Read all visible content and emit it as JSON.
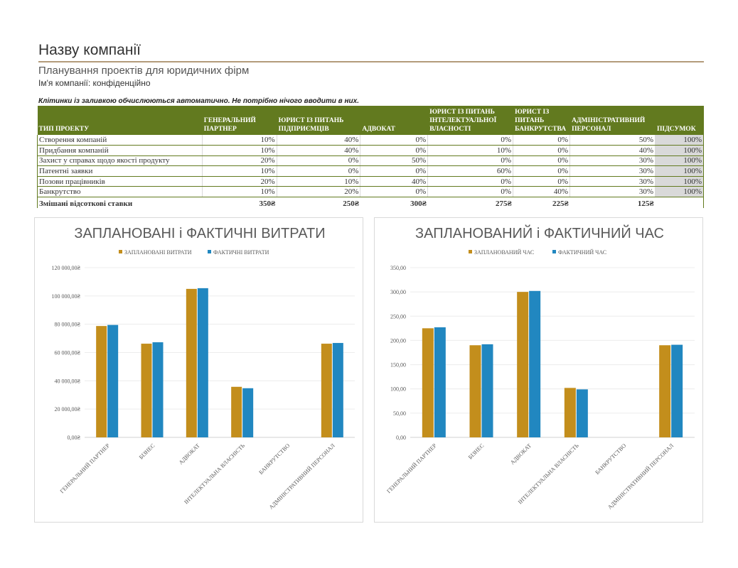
{
  "header": {
    "company_title": "Назву компанії",
    "subtitle": "Планування проектів для юридичних фірм",
    "company_name": "Ім'я компанії: конфіденційно"
  },
  "note": "Клітинки із заливкою обчислюються автоматично. Не потрібно нічого вводити в них.",
  "table": {
    "headers": [
      "ТИП ПРОЕКТУ",
      "ГЕНЕРАЛЬНИЙ ПАРТНЕР",
      "ЮРИСТ ІЗ ПИТАНЬ ПІДПРИЄМЦІВ",
      "АДВОКАТ",
      "ЮРИСТ ІЗ ПИТАНЬ ІНТЕЛЕКТУАЛЬНОЇ ВЛАСНОСТІ",
      "ЮРИСТ ІЗ ПИТАНЬ БАНКРУТСТВА",
      "АДМІНІСТРАТИВНИЙ ПЕРСОНАЛ",
      "ПІДСУМОК"
    ],
    "rows": [
      [
        "Створення компаній",
        "10%",
        "40%",
        "0%",
        "0%",
        "0%",
        "50%",
        "100%"
      ],
      [
        "Придбання компаній",
        "10%",
        "40%",
        "0%",
        "10%",
        "0%",
        "40%",
        "100%"
      ],
      [
        "Захист у справах щодо якості продукту",
        "20%",
        "0%",
        "50%",
        "0%",
        "0%",
        "30%",
        "100%"
      ],
      [
        "Патентні заявки",
        "10%",
        "0%",
        "0%",
        "60%",
        "0%",
        "30%",
        "100%"
      ],
      [
        "Позови працівників",
        "20%",
        "10%",
        "40%",
        "0%",
        "0%",
        "30%",
        "100%"
      ],
      [
        "Банкрутство",
        "10%",
        "20%",
        "0%",
        "0%",
        "40%",
        "30%",
        "100%"
      ]
    ],
    "mixed_rates": [
      "Змішані відсоткові ставки",
      "350₴",
      "250₴",
      "300₴",
      "275₴",
      "225₴",
      "125₴",
      ""
    ]
  },
  "chart_data": [
    {
      "type": "bar",
      "title": "ЗАПЛАНОВАНІ і ФАКТИЧНІ ВИТРАТИ",
      "categories": [
        "ГЕНЕРАЛЬНИЙ ПАРТНЕР",
        "БІЗНЕС",
        "АДВОКАТ",
        "ІНТЕЛЕКТУАЛЬНА ВЛАСНІСТЬ",
        "БАНКРУТСТВО",
        "АДМІНІСТРАТИВНИЙ ПЕРСОНАЛ"
      ],
      "series": [
        {
          "name": "ЗАПЛАНОВАНІ ВИТРАТИ",
          "values": [
            78750,
            66250,
            105000,
            35750,
            0,
            66250
          ],
          "color": "#c38e1c"
        },
        {
          "name": "ФАКТИЧНІ ВИТРАТИ",
          "values": [
            79500,
            67250,
            105500,
            34750,
            0,
            66750
          ],
          "color": "#2187c0"
        }
      ],
      "ylim": [
        0,
        120000
      ],
      "yticks": [
        "0,00₴",
        "20 000,00₴",
        "40 000,00₴",
        "60 000,00₴",
        "80 000,00₴",
        "100 000,00₴",
        "120 000,00₴"
      ],
      "legend": "top",
      "grid": true
    },
    {
      "type": "bar",
      "title": "ЗАПЛАНОВАНИЙ і ФАКТИЧНИЙ ЧАС",
      "categories": [
        "ГЕНЕРАЛЬНИЙ ПАРТНЕР",
        "БІЗНЕС",
        "АДВОКАТ",
        "ІНТЕЛЕКТУАЛЬНА ВЛАСНІСТЬ",
        "БАНКРУТСТВО",
        "АДМІНІСТРАТИВНИЙ ПЕРСОНАЛ"
      ],
      "series": [
        {
          "name": "ЗАПЛАНОВАНИЙ ЧАС",
          "values": [
            225,
            190,
            300,
            102,
            0,
            190
          ],
          "color": "#c38e1c"
        },
        {
          "name": "ФАКТИЧНИЙ ЧАС",
          "values": [
            227,
            192,
            302,
            99,
            0,
            191
          ],
          "color": "#2187c0"
        }
      ],
      "ylim": [
        0,
        350
      ],
      "yticks": [
        "0,00",
        "50,00",
        "100,00",
        "150,00",
        "200,00",
        "250,00",
        "300,00",
        "350,00"
      ],
      "legend": "top",
      "grid": true
    }
  ]
}
